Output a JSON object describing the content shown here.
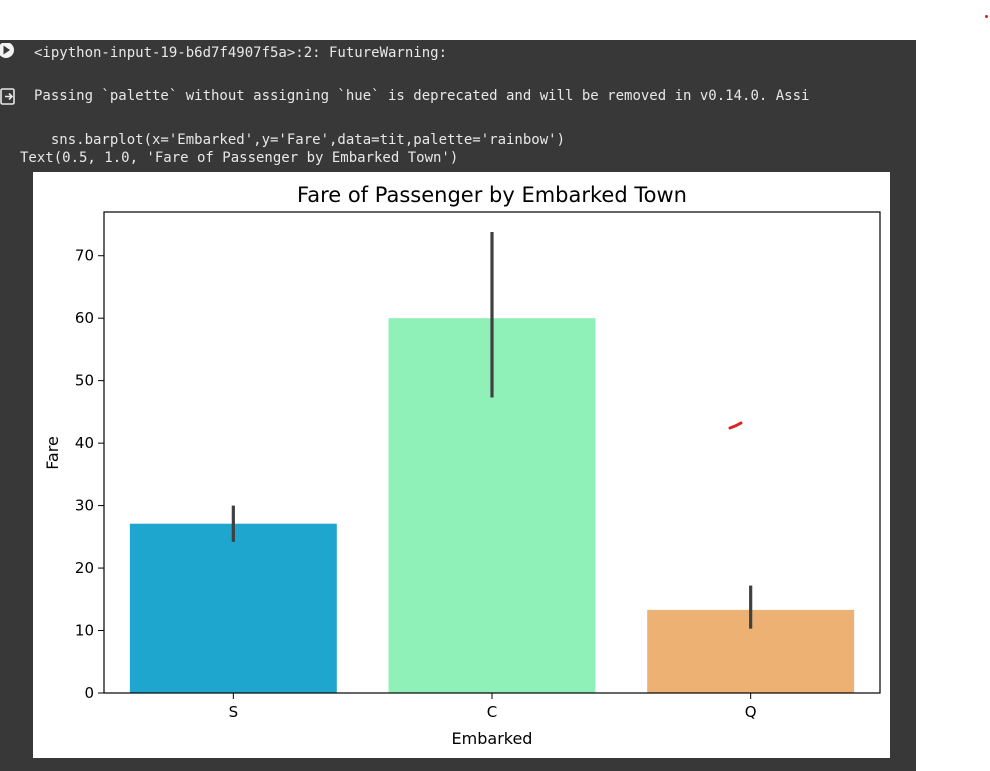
{
  "output": {
    "lines": [
      "<ipython-input-19-b6d7f4907f5a>:2: FutureWarning:",
      "Passing `palette` without assigning `hue` is deprecated and will be removed in v0.14.0. Assi",
      "  sns.barplot(x='Embarked',y='Fare',data=tit,palette='rainbow')",
      "Text(0.5, 1.0, 'Fare of Passenger by Embarked Town')"
    ],
    "icons": [
      "run-cell-icon",
      "output-toggle-icon"
    ]
  },
  "colors": {
    "cell_background": "#383838",
    "bar_S": "#1fa6cf",
    "bar_C": "#8ff0b8",
    "bar_Q": "#edb273",
    "error_bar": "#404040",
    "annotation_mark": "#e02020"
  },
  "chart_data": {
    "type": "bar",
    "title": "Fare of Passenger by Embarked Town",
    "xlabel": "Embarked",
    "ylabel": "Fare",
    "categories": [
      "S",
      "C",
      "Q"
    ],
    "values": [
      27.1,
      60.0,
      13.3
    ],
    "error_low": [
      24.2,
      47.3,
      10.3
    ],
    "error_high": [
      30.0,
      73.8,
      17.2
    ],
    "ylim": [
      0,
      77
    ],
    "yticks": [
      0,
      10,
      20,
      30,
      40,
      50,
      60,
      70
    ],
    "grid": false,
    "legend": "none"
  }
}
